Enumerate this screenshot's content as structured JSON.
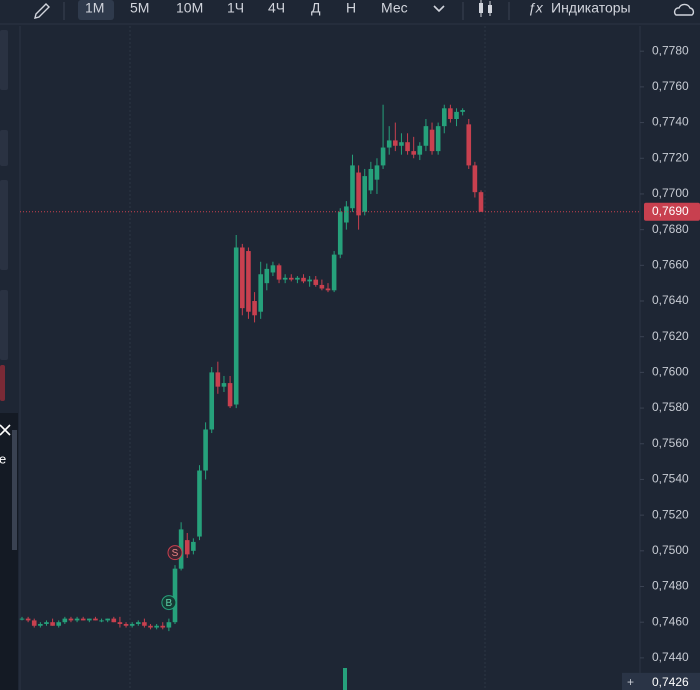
{
  "toolbar": {
    "intervals": [
      "1M",
      "5M",
      "10M",
      "1Ч",
      "4Ч",
      "Д",
      "Н",
      "Мес"
    ],
    "indicators": "Индикаторы"
  },
  "left_panel_label": "e",
  "chart_data": {
    "type": "candlestick",
    "up_color": "#26a17b",
    "down_color": "#c8404f",
    "ylim": [
      0.7422,
      0.7793
    ],
    "yticks": [
      {
        "value": 0.744,
        "label": "0,7440"
      },
      {
        "value": 0.746,
        "label": "0,7460"
      },
      {
        "value": 0.748,
        "label": "0,7480"
      },
      {
        "value": 0.75,
        "label": "0,7500"
      },
      {
        "value": 0.752,
        "label": "0,7520"
      },
      {
        "value": 0.754,
        "label": "0,7540"
      },
      {
        "value": 0.756,
        "label": "0,7560"
      },
      {
        "value": 0.758,
        "label": "0,7580"
      },
      {
        "value": 0.76,
        "label": "0,7600"
      },
      {
        "value": 0.762,
        "label": "0,7620"
      },
      {
        "value": 0.764,
        "label": "0,7640"
      },
      {
        "value": 0.766,
        "label": "0,7660"
      },
      {
        "value": 0.768,
        "label": "0,7680"
      },
      {
        "value": 0.77,
        "label": "0,7700"
      },
      {
        "value": 0.772,
        "label": "0,7720"
      },
      {
        "value": 0.774,
        "label": "0,7740"
      },
      {
        "value": 0.776,
        "label": "0,7760"
      },
      {
        "value": 0.778,
        "label": "0,7780"
      }
    ],
    "last_price": {
      "value": 0.769,
      "label": "0,7690"
    },
    "crosshair_price": {
      "value": 0.7426,
      "label": "0,7426"
    },
    "markers": [
      {
        "label": "B",
        "index": 24,
        "value": 0.7471
      },
      {
        "label": "S",
        "index": 25,
        "value": 0.7499
      }
    ],
    "candles": [
      [
        0.7462,
        0.7463,
        0.7461,
        0.7462
      ],
      [
        0.7462,
        0.7463,
        0.746,
        0.7461
      ],
      [
        0.7461,
        0.7462,
        0.7457,
        0.7458
      ],
      [
        0.7458,
        0.746,
        0.7457,
        0.7459
      ],
      [
        0.7459,
        0.7461,
        0.7458,
        0.746
      ],
      [
        0.746,
        0.7462,
        0.7458,
        0.7458
      ],
      [
        0.7458,
        0.7461,
        0.7457,
        0.746
      ],
      [
        0.746,
        0.7463,
        0.7459,
        0.7462
      ],
      [
        0.7462,
        0.7463,
        0.746,
        0.7461
      ],
      [
        0.7461,
        0.7463,
        0.746,
        0.7462
      ],
      [
        0.7462,
        0.7463,
        0.7461,
        0.7461
      ],
      [
        0.7461,
        0.7462,
        0.746,
        0.7462
      ],
      [
        0.7462,
        0.7463,
        0.7461,
        0.7461
      ],
      [
        0.7461,
        0.7462,
        0.746,
        0.7461
      ],
      [
        0.7461,
        0.7462,
        0.746,
        0.7462
      ],
      [
        0.7462,
        0.7463,
        0.746,
        0.746
      ],
      [
        0.746,
        0.7463,
        0.7457,
        0.7459
      ],
      [
        0.7459,
        0.746,
        0.7457,
        0.7458
      ],
      [
        0.7458,
        0.746,
        0.7457,
        0.7459
      ],
      [
        0.7459,
        0.7461,
        0.7458,
        0.746
      ],
      [
        0.746,
        0.7462,
        0.7457,
        0.7458
      ],
      [
        0.7458,
        0.7459,
        0.7456,
        0.7457
      ],
      [
        0.7457,
        0.7459,
        0.7456,
        0.7458
      ],
      [
        0.7458,
        0.746,
        0.7456,
        0.7457
      ],
      [
        0.7457,
        0.7462,
        0.7455,
        0.746
      ],
      [
        0.746,
        0.7492,
        0.7459,
        0.749
      ],
      [
        0.749,
        0.7516,
        0.7489,
        0.7512
      ],
      [
        0.7506,
        0.751,
        0.7496,
        0.7498
      ],
      [
        0.75,
        0.7507,
        0.7498,
        0.7505
      ],
      [
        0.7508,
        0.7548,
        0.7506,
        0.7545
      ],
      [
        0.7545,
        0.7572,
        0.754,
        0.7568
      ],
      [
        0.7568,
        0.7603,
        0.7566,
        0.76
      ],
      [
        0.76,
        0.7606,
        0.7588,
        0.7592
      ],
      [
        0.7592,
        0.7598,
        0.7589,
        0.7594
      ],
      [
        0.7594,
        0.7598,
        0.758,
        0.7581
      ],
      [
        0.7582,
        0.7677,
        0.758,
        0.767
      ],
      [
        0.767,
        0.7672,
        0.7632,
        0.7636
      ],
      [
        0.7668,
        0.767,
        0.763,
        0.7634
      ],
      [
        0.764,
        0.7645,
        0.7628,
        0.7632
      ],
      [
        0.7634,
        0.7662,
        0.763,
        0.7655
      ],
      [
        0.765,
        0.7661,
        0.7646,
        0.7658
      ],
      [
        0.7656,
        0.7662,
        0.7654,
        0.766
      ],
      [
        0.766,
        0.7661,
        0.765,
        0.7652
      ],
      [
        0.7652,
        0.7655,
        0.765,
        0.7653
      ],
      [
        0.7653,
        0.7655,
        0.7651,
        0.7652
      ],
      [
        0.7652,
        0.7654,
        0.765,
        0.7653
      ],
      [
        0.7653,
        0.7655,
        0.765,
        0.7651
      ],
      [
        0.7651,
        0.7654,
        0.7648,
        0.7652
      ],
      [
        0.7652,
        0.7654,
        0.7648,
        0.7649
      ],
      [
        0.7649,
        0.7652,
        0.7646,
        0.7647
      ],
      [
        0.7647,
        0.765,
        0.7645,
        0.7646
      ],
      [
        0.7646,
        0.7668,
        0.7645,
        0.7666
      ],
      [
        0.7666,
        0.7692,
        0.7664,
        0.769
      ],
      [
        0.7684,
        0.7696,
        0.768,
        0.7693
      ],
      [
        0.7692,
        0.7722,
        0.769,
        0.7716
      ],
      [
        0.7712,
        0.7716,
        0.768,
        0.7688
      ],
      [
        0.769,
        0.7714,
        0.7688,
        0.771
      ],
      [
        0.7702,
        0.7718,
        0.77,
        0.7714
      ],
      [
        0.7708,
        0.772,
        0.77,
        0.7716
      ],
      [
        0.7716,
        0.775,
        0.7714,
        0.7726
      ],
      [
        0.7726,
        0.7738,
        0.7722,
        0.773
      ],
      [
        0.773,
        0.774,
        0.7724,
        0.7727
      ],
      [
        0.7727,
        0.7734,
        0.7722,
        0.7729
      ],
      [
        0.7729,
        0.7734,
        0.7722,
        0.7724
      ],
      [
        0.7724,
        0.7732,
        0.772,
        0.7722
      ],
      [
        0.7722,
        0.7729,
        0.7719,
        0.7727
      ],
      [
        0.7727,
        0.7742,
        0.7724,
        0.7738
      ],
      [
        0.7736,
        0.774,
        0.7722,
        0.7724
      ],
      [
        0.7724,
        0.774,
        0.7722,
        0.7738
      ],
      [
        0.7738,
        0.775,
        0.7734,
        0.7748
      ],
      [
        0.7748,
        0.775,
        0.774,
        0.7742
      ],
      [
        0.7742,
        0.7748,
        0.7738,
        0.7746
      ],
      [
        0.7746,
        0.7748,
        0.7744,
        0.7747
      ],
      [
        0.7739,
        0.7742,
        0.7714,
        0.7716
      ],
      [
        0.7716,
        0.7718,
        0.7698,
        0.7701
      ],
      [
        0.7701,
        0.7702,
        0.769,
        0.769
      ]
    ]
  }
}
